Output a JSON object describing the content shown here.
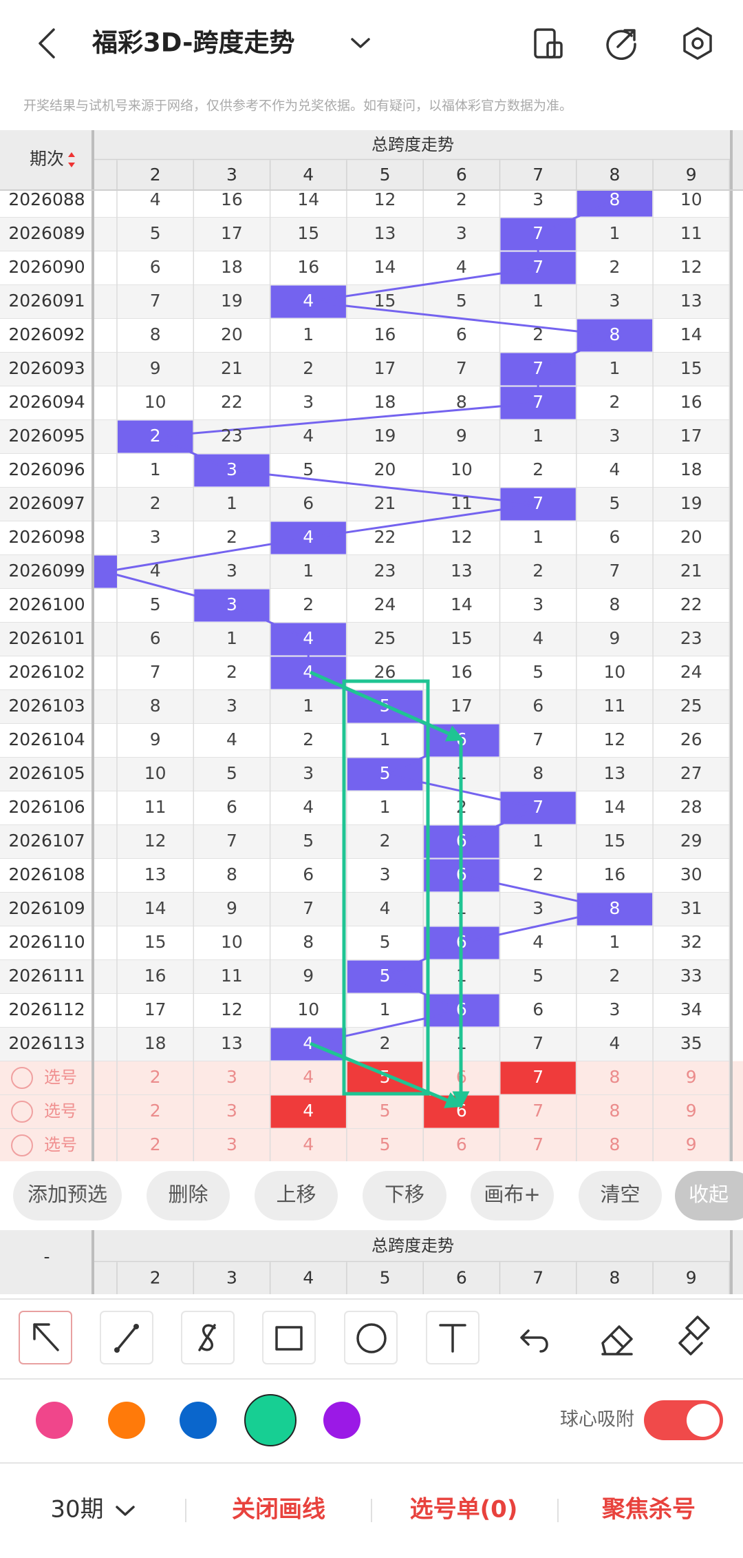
{
  "header": {
    "title": "福彩3D-跨度走势",
    "notice": "开奖结果与试机号来源于网络，仅供参考不作为兑奖依据。如有疑问，以福体彩官方数据为准。"
  },
  "table": {
    "period_label": "期次",
    "group_label": "总跨度走势",
    "columns": [
      2,
      3,
      4,
      5,
      6,
      7,
      8,
      9
    ],
    "rows": [
      {
        "period": "2026088",
        "cells": [
          4,
          16,
          14,
          12,
          2,
          3,
          8,
          10
        ],
        "hit": 6
      },
      {
        "period": "2026089",
        "cells": [
          5,
          17,
          15,
          13,
          3,
          7,
          1,
          11
        ],
        "hit": 5
      },
      {
        "period": "2026090",
        "cells": [
          6,
          18,
          16,
          14,
          4,
          7,
          2,
          12
        ],
        "hit": 5
      },
      {
        "period": "2026091",
        "cells": [
          7,
          19,
          4,
          15,
          5,
          1,
          3,
          13
        ],
        "hit": 2
      },
      {
        "period": "2026092",
        "cells": [
          8,
          20,
          1,
          16,
          6,
          2,
          8,
          14
        ],
        "hit": 6
      },
      {
        "period": "2026093",
        "cells": [
          9,
          21,
          2,
          17,
          7,
          7,
          1,
          15
        ],
        "hit": 5
      },
      {
        "period": "2026094",
        "cells": [
          10,
          22,
          3,
          18,
          8,
          7,
          2,
          16
        ],
        "hit": 5
      },
      {
        "period": "2026095",
        "cells": [
          2,
          23,
          4,
          19,
          9,
          1,
          3,
          17
        ],
        "hit": 0
      },
      {
        "period": "2026096",
        "cells": [
          1,
          3,
          5,
          20,
          10,
          2,
          4,
          18
        ],
        "hit": 1
      },
      {
        "period": "2026097",
        "cells": [
          2,
          1,
          6,
          21,
          11,
          7,
          5,
          19
        ],
        "hit": 5
      },
      {
        "period": "2026098",
        "cells": [
          3,
          2,
          4,
          22,
          12,
          1,
          6,
          20
        ],
        "hit": 2
      },
      {
        "period": "2026099",
        "cells": [
          4,
          3,
          1,
          23,
          13,
          2,
          7,
          21
        ],
        "hit": null
      },
      {
        "period": "2026100",
        "cells": [
          5,
          3,
          2,
          24,
          14,
          3,
          8,
          22
        ],
        "hit": 1
      },
      {
        "period": "2026101",
        "cells": [
          6,
          1,
          4,
          25,
          15,
          4,
          9,
          23
        ],
        "hit": 2
      },
      {
        "period": "2026102",
        "cells": [
          7,
          2,
          4,
          26,
          16,
          5,
          10,
          24
        ],
        "hit": 2
      },
      {
        "period": "2026103",
        "cells": [
          8,
          3,
          1,
          5,
          17,
          6,
          11,
          25
        ],
        "hit": 3
      },
      {
        "period": "2026104",
        "cells": [
          9,
          4,
          2,
          1,
          6,
          7,
          12,
          26
        ],
        "hit": 4
      },
      {
        "period": "2026105",
        "cells": [
          10,
          5,
          3,
          5,
          1,
          8,
          13,
          27
        ],
        "hit": 3
      },
      {
        "period": "2026106",
        "cells": [
          11,
          6,
          4,
          1,
          2,
          7,
          14,
          28
        ],
        "hit": 5
      },
      {
        "period": "2026107",
        "cells": [
          12,
          7,
          5,
          2,
          6,
          1,
          15,
          29
        ],
        "hit": 4
      },
      {
        "period": "2026108",
        "cells": [
          13,
          8,
          6,
          3,
          6,
          2,
          16,
          30
        ],
        "hit": 4
      },
      {
        "period": "2026109",
        "cells": [
          14,
          9,
          7,
          4,
          1,
          3,
          8,
          31
        ],
        "hit": 6
      },
      {
        "period": "2026110",
        "cells": [
          15,
          10,
          8,
          5,
          6,
          4,
          1,
          32
        ],
        "hit": 4
      },
      {
        "period": "2026111",
        "cells": [
          16,
          11,
          9,
          5,
          1,
          5,
          2,
          33
        ],
        "hit": 3
      },
      {
        "period": "2026112",
        "cells": [
          17,
          12,
          10,
          1,
          6,
          6,
          3,
          34
        ],
        "hit": 4
      },
      {
        "period": "2026113",
        "cells": [
          18,
          13,
          4,
          2,
          1,
          7,
          4,
          35
        ],
        "hit": 2
      }
    ],
    "pick_rows": [
      {
        "label": "选号",
        "cells": [
          2,
          3,
          4,
          5,
          6,
          7,
          8,
          9
        ],
        "selected": [
          3,
          5
        ]
      },
      {
        "label": "选号",
        "cells": [
          2,
          3,
          4,
          5,
          6,
          7,
          8,
          9
        ],
        "selected": [
          2,
          4
        ]
      },
      {
        "label": "选号",
        "cells": [
          2,
          3,
          4,
          5,
          6,
          7,
          8,
          9
        ],
        "selected": []
      }
    ]
  },
  "actions": [
    "添加预选",
    "删除",
    "上移",
    "下移",
    "画布+",
    "清空",
    "收起"
  ],
  "bottom_header": {
    "period_label": "-",
    "group_label": "总跨度走势",
    "columns": [
      2,
      3,
      4,
      5,
      6,
      7,
      8,
      9
    ]
  },
  "palette": {
    "colors": [
      "#f0468b",
      "#ff7a0a",
      "#0a66cc",
      "#17cf93",
      "#9b19e6"
    ],
    "selected": 3,
    "snap_label": "球心吸附",
    "snap_on": true
  },
  "footer": {
    "periods": "30期",
    "close_lines": "关闭画线",
    "pick_list": "选号单(0)",
    "focus": "聚焦杀号"
  }
}
